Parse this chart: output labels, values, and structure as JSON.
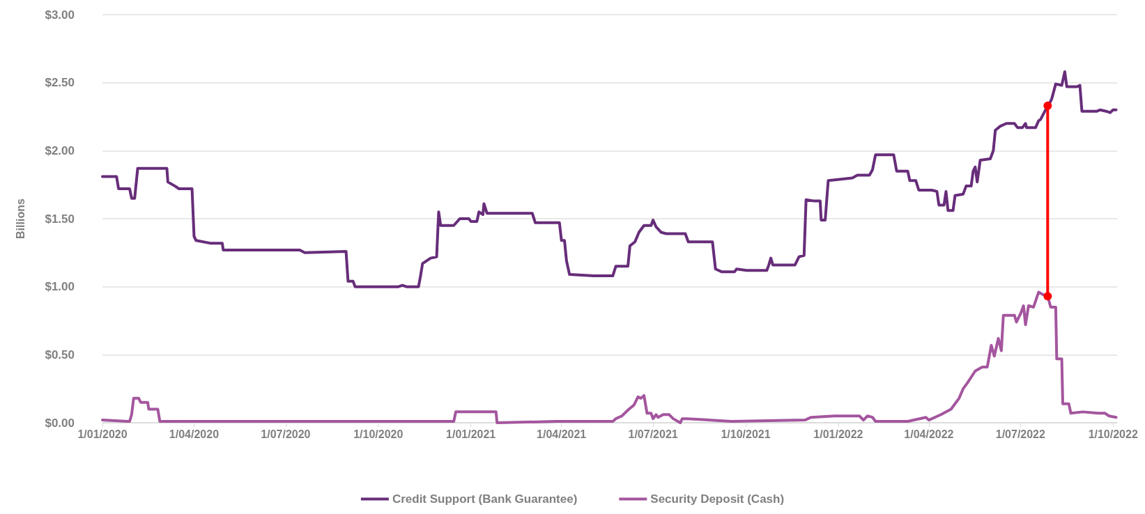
{
  "chart_data": {
    "type": "line",
    "ylabel": "Billions",
    "grid": "y",
    "legend": "bottom",
    "marker": "none",
    "line_style": "solid",
    "xlim": [
      "2020-01-01",
      "2022-10-05"
    ],
    "xticks": [
      {
        "value": "2020-01-01",
        "label": "1/01/2020"
      },
      {
        "value": "2020-04-01",
        "label": "1/04/2020"
      },
      {
        "value": "2020-07-01",
        "label": "1/07/2020"
      },
      {
        "value": "2020-10-01",
        "label": "1/10/2020"
      },
      {
        "value": "2021-01-01",
        "label": "1/01/2021"
      },
      {
        "value": "2021-04-01",
        "label": "1/04/2021"
      },
      {
        "value": "2021-07-01",
        "label": "1/07/2021"
      },
      {
        "value": "2021-10-01",
        "label": "1/10/2021"
      },
      {
        "value": "2022-01-01",
        "label": "1/01/2022"
      },
      {
        "value": "2022-04-01",
        "label": "1/04/2022"
      },
      {
        "value": "2022-07-01",
        "label": "1/07/2022"
      },
      {
        "value": "2022-10-01",
        "label": "1/10/2022"
      }
    ],
    "ylim": [
      0,
      3
    ],
    "yticks": [
      {
        "value": 0,
        "label": "$0.00"
      },
      {
        "value": 0.5,
        "label": "$0.50"
      },
      {
        "value": 1,
        "label": "$1.00"
      },
      {
        "value": 1.5,
        "label": "$1.50"
      },
      {
        "value": 2,
        "label": "$2.00"
      },
      {
        "value": 2.5,
        "label": "$2.50"
      },
      {
        "value": 3,
        "label": "$3.00"
      }
    ],
    "series": [
      {
        "name": "Credit Support (Bank Guarantee)",
        "color": "#672d7a",
        "x": [
          "2020-01-01",
          "2020-01-15",
          "2020-01-17",
          "2020-01-28",
          "2020-01-30",
          "2020-02-02",
          "2020-02-05",
          "2020-03-05",
          "2020-03-06",
          "2020-03-13",
          "2020-03-17",
          "2020-03-30",
          "2020-04-01",
          "2020-04-03",
          "2020-04-17",
          "2020-04-29",
          "2020-04-30",
          "2020-07-15",
          "2020-07-20",
          "2020-08-30",
          "2020-09-01",
          "2020-09-06",
          "2020-09-08",
          "2020-10-21",
          "2020-10-25",
          "2020-10-29",
          "2020-11-10",
          "2020-11-12",
          "2020-11-14",
          "2020-11-22",
          "2020-11-28",
          "2020-11-30",
          "2020-12-02",
          "2020-12-15",
          "2020-12-21",
          "2020-12-30",
          "2021-01-01",
          "2021-01-07",
          "2021-01-09",
          "2021-01-13",
          "2021-01-14",
          "2021-01-17",
          "2021-03-03",
          "2021-03-06",
          "2021-03-30",
          "2021-04-01",
          "2021-04-04",
          "2021-04-06",
          "2021-04-09",
          "2021-05-03",
          "2021-05-22",
          "2021-05-25",
          "2021-06-06",
          "2021-06-08",
          "2021-06-13",
          "2021-06-17",
          "2021-06-22",
          "2021-06-29",
          "2021-07-01",
          "2021-07-04",
          "2021-07-09",
          "2021-07-14",
          "2021-08-02",
          "2021-08-05",
          "2021-08-29",
          "2021-09-01",
          "2021-09-07",
          "2021-09-20",
          "2021-09-22",
          "2021-10-02",
          "2021-10-22",
          "2021-10-24",
          "2021-10-26",
          "2021-10-28",
          "2021-11-19",
          "2021-11-23",
          "2021-11-28",
          "2021-11-30",
          "2021-12-08",
          "2021-12-14",
          "2021-12-15",
          "2021-12-19",
          "2021-12-22",
          "2022-01-04",
          "2022-01-15",
          "2022-01-20",
          "2022-02-01",
          "2022-02-04",
          "2022-02-07",
          "2022-02-25",
          "2022-02-28",
          "2022-03-11",
          "2022-03-13",
          "2022-03-19",
          "2022-03-22",
          "2022-04-04",
          "2022-04-09",
          "2022-04-11",
          "2022-04-16",
          "2022-04-18",
          "2022-04-20",
          "2022-04-25",
          "2022-04-27",
          "2022-05-05",
          "2022-05-08",
          "2022-05-13",
          "2022-05-15",
          "2022-05-17",
          "2022-05-19",
          "2022-05-22",
          "2022-06-01",
          "2022-06-04",
          "2022-06-06",
          "2022-06-11",
          "2022-06-17",
          "2022-06-25",
          "2022-06-28",
          "2022-07-03",
          "2022-07-06",
          "2022-07-07",
          "2022-07-16",
          "2022-07-19",
          "2022-07-21",
          "2022-07-28",
          "2022-07-30",
          "2022-08-01",
          "2022-08-05",
          "2022-08-11",
          "2022-08-14",
          "2022-08-16",
          "2022-08-26",
          "2022-08-29",
          "2022-08-31",
          "2022-09-15",
          "2022-09-18",
          "2022-09-24",
          "2022-09-28",
          "2022-10-01",
          "2022-10-04"
        ],
        "values": [
          1.81,
          1.81,
          1.72,
          1.72,
          1.65,
          1.65,
          1.87,
          1.87,
          1.77,
          1.74,
          1.72,
          1.72,
          1.37,
          1.34,
          1.32,
          1.32,
          1.27,
          1.27,
          1.25,
          1.26,
          1.04,
          1.04,
          1.0,
          1.0,
          1.01,
          1.0,
          1.0,
          1.08,
          1.17,
          1.21,
          1.22,
          1.55,
          1.45,
          1.45,
          1.5,
          1.5,
          1.48,
          1.48,
          1.55,
          1.53,
          1.61,
          1.54,
          1.54,
          1.47,
          1.47,
          1.34,
          1.34,
          1.19,
          1.09,
          1.08,
          1.08,
          1.15,
          1.15,
          1.3,
          1.33,
          1.4,
          1.45,
          1.45,
          1.49,
          1.44,
          1.4,
          1.39,
          1.39,
          1.33,
          1.33,
          1.13,
          1.11,
          1.11,
          1.13,
          1.12,
          1.12,
          1.16,
          1.21,
          1.16,
          1.16,
          1.22,
          1.23,
          1.64,
          1.63,
          1.63,
          1.49,
          1.49,
          1.78,
          1.79,
          1.8,
          1.82,
          1.82,
          1.86,
          1.97,
          1.97,
          1.85,
          1.85,
          1.78,
          1.78,
          1.71,
          1.71,
          1.7,
          1.6,
          1.6,
          1.7,
          1.56,
          1.56,
          1.67,
          1.68,
          1.74,
          1.74,
          1.85,
          1.88,
          1.77,
          1.93,
          1.94,
          2.0,
          2.15,
          2.18,
          2.2,
          2.2,
          2.17,
          2.17,
          2.2,
          2.17,
          2.17,
          2.22,
          2.23,
          2.33,
          2.35,
          2.38,
          2.49,
          2.48,
          2.58,
          2.47,
          2.47,
          2.48,
          2.29,
          2.29,
          2.3,
          2.29,
          2.28,
          2.3,
          2.3
        ]
      },
      {
        "name": "Security Deposit (Cash)",
        "color": "#a4569e",
        "x": [
          "2020-01-01",
          "2020-01-26",
          "2020-01-28",
          "2020-01-30",
          "2020-02-01",
          "2020-02-06",
          "2020-02-08",
          "2020-02-15",
          "2020-02-16",
          "2020-02-25",
          "2020-02-27",
          "2020-04-26",
          "2020-07-08",
          "2020-09-19",
          "2020-12-15",
          "2020-12-17",
          "2021-01-06",
          "2021-01-26",
          "2021-01-27",
          "2021-03-27",
          "2021-05-22",
          "2021-05-25",
          "2021-05-31",
          "2021-06-07",
          "2021-06-12",
          "2021-06-16",
          "2021-06-19",
          "2021-06-22",
          "2021-06-25",
          "2021-06-29",
          "2021-07-01",
          "2021-07-04",
          "2021-07-06",
          "2021-07-11",
          "2021-07-17",
          "2021-07-21",
          "2021-07-28",
          "2021-07-30",
          "2021-08-04",
          "2021-09-17",
          "2021-11-29",
          "2021-12-05",
          "2021-12-28",
          "2022-01-22",
          "2022-01-26",
          "2022-01-30",
          "2022-02-04",
          "2022-02-07",
          "2022-03-11",
          "2022-03-29",
          "2022-04-01",
          "2022-04-13",
          "2022-04-23",
          "2022-05-01",
          "2022-05-05",
          "2022-05-09",
          "2022-05-17",
          "2022-05-24",
          "2022-05-29",
          "2022-06-02",
          "2022-06-05",
          "2022-06-09",
          "2022-06-12",
          "2022-06-14",
          "2022-06-25",
          "2022-06-27",
          "2022-07-01",
          "2022-07-04",
          "2022-07-06",
          "2022-07-09",
          "2022-07-14",
          "2022-07-19",
          "2022-07-24",
          "2022-07-28",
          "2022-07-31",
          "2022-08-05",
          "2022-08-06",
          "2022-08-11",
          "2022-08-12",
          "2022-08-18",
          "2022-08-20",
          "2022-09-01",
          "2022-09-16",
          "2022-09-23",
          "2022-09-27",
          "2022-10-04"
        ],
        "values": [
          0.02,
          0.01,
          0.01,
          0.06,
          0.18,
          0.18,
          0.15,
          0.15,
          0.1,
          0.1,
          0.01,
          0.01,
          0.01,
          0.01,
          0.01,
          0.08,
          0.08,
          0.08,
          0.0,
          0.01,
          0.01,
          0.03,
          0.05,
          0.1,
          0.13,
          0.19,
          0.18,
          0.2,
          0.07,
          0.07,
          0.03,
          0.06,
          0.04,
          0.06,
          0.06,
          0.03,
          0.0,
          0.03,
          0.03,
          0.01,
          0.02,
          0.04,
          0.05,
          0.05,
          0.02,
          0.05,
          0.04,
          0.01,
          0.01,
          0.04,
          0.02,
          0.06,
          0.1,
          0.18,
          0.25,
          0.29,
          0.38,
          0.41,
          0.41,
          0.57,
          0.49,
          0.62,
          0.53,
          0.79,
          0.79,
          0.74,
          0.8,
          0.86,
          0.72,
          0.86,
          0.85,
          0.96,
          0.94,
          0.93,
          0.85,
          0.85,
          0.47,
          0.47,
          0.14,
          0.14,
          0.07,
          0.08,
          0.07,
          0.07,
          0.05,
          0.04
        ]
      },
      {
        "color": "#ff0000",
        "marker": "circle",
        "x": [
          "2022-07-28",
          "2022-07-28"
        ],
        "values": [
          2.33,
          0.93
        ]
      }
    ]
  }
}
